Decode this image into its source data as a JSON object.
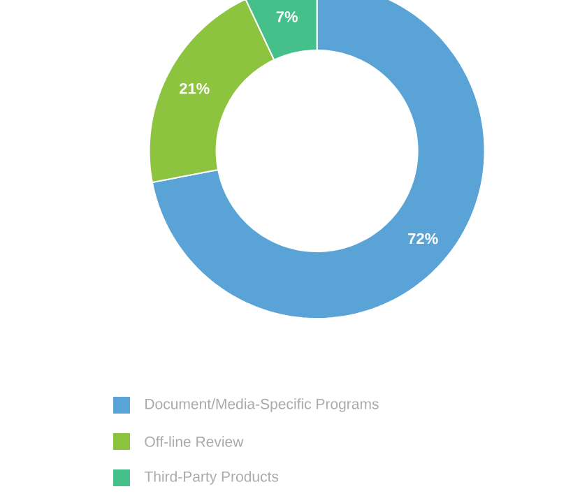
{
  "chart_data": {
    "type": "donut",
    "categories": [
      "Document/Media-Specific Programs",
      "Off-line Review",
      "Third-Party Products"
    ],
    "values": [
      72,
      21,
      7
    ],
    "value_labels": [
      "72%",
      "21%",
      "7%"
    ],
    "colors": [
      "#5aa3d6",
      "#8cc43f",
      "#45c08b"
    ],
    "legend": "bottom"
  }
}
